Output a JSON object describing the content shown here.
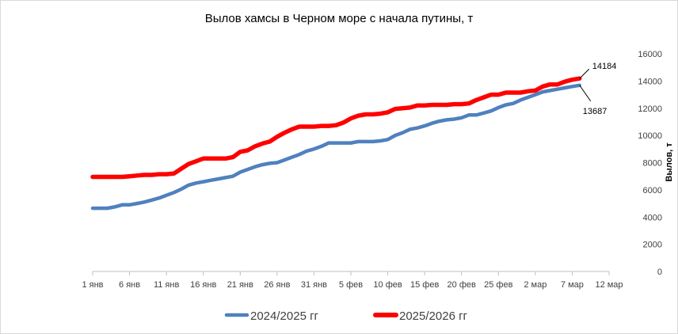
{
  "chart_data": {
    "type": "line",
    "title": "Вылов хамсы в Черном море с начала путины, т",
    "xlabel": "",
    "ylabel": "Вылов, т",
    "ylim": [
      0,
      16000
    ],
    "y_ticks": [
      "0",
      "2000",
      "4000",
      "6000",
      "8000",
      "10000",
      "12000",
      "14000",
      "16000"
    ],
    "x_tick_labels": [
      "1 янв",
      "6 янв",
      "11 янв",
      "16 янв",
      "21 янв",
      "26 янв",
      "31 янв",
      "5 фев",
      "10 фев",
      "15 фев",
      "20 фев",
      "25 фев",
      "2 мар",
      "7 мар",
      "12 мар"
    ],
    "x_range_days": [
      0,
      70
    ],
    "x_tick_days": [
      0,
      5,
      10,
      15,
      20,
      25,
      30,
      35,
      40,
      45,
      50,
      55,
      60,
      65,
      70
    ],
    "grid": false,
    "legend_position": "bottom",
    "series": [
      {
        "name": "2024/2025 гг",
        "color": "#4f81bd",
        "x": [
          0,
          1,
          2,
          3,
          4,
          5,
          6,
          7,
          8,
          9,
          10,
          11,
          12,
          13,
          14,
          15,
          16,
          17,
          18,
          19,
          20,
          21,
          22,
          23,
          24,
          25,
          26,
          27,
          28,
          29,
          30,
          31,
          32,
          33,
          34,
          35,
          36,
          37,
          38,
          39,
          40,
          41,
          42,
          43,
          44,
          45,
          46,
          47,
          48,
          49,
          50,
          51,
          52,
          53,
          54,
          55,
          56,
          57,
          58,
          59,
          60,
          61,
          62,
          63,
          64,
          65,
          66
        ],
        "y": [
          4650,
          4650,
          4650,
          4750,
          4900,
          4900,
          5000,
          5100,
          5250,
          5400,
          5600,
          5800,
          6050,
          6350,
          6500,
          6600,
          6700,
          6800,
          6900,
          7000,
          7300,
          7500,
          7700,
          7850,
          7950,
          8000,
          8200,
          8400,
          8600,
          8850,
          9000,
          9200,
          9450,
          9450,
          9450,
          9450,
          9550,
          9550,
          9550,
          9600,
          9700,
          10000,
          10200,
          10450,
          10550,
          10700,
          10900,
          11050,
          11150,
          11200,
          11300,
          11500,
          11500,
          11650,
          11800,
          12050,
          12250,
          12350,
          12600,
          12800,
          13000,
          13200,
          13300,
          13400,
          13500,
          13600,
          13687
        ]
      },
      {
        "name": "2025/2026 гг",
        "color": "#ff0000",
        "x": [
          0,
          1,
          2,
          3,
          4,
          5,
          6,
          7,
          8,
          9,
          10,
          11,
          12,
          13,
          14,
          15,
          16,
          17,
          18,
          19,
          20,
          21,
          22,
          23,
          24,
          25,
          26,
          27,
          28,
          29,
          30,
          31,
          32,
          33,
          34,
          35,
          36,
          37,
          38,
          39,
          40,
          41,
          42,
          43,
          44,
          45,
          46,
          47,
          48,
          49,
          50,
          51,
          52,
          53,
          54,
          55,
          56,
          57,
          58,
          59,
          60,
          61,
          62,
          63,
          64,
          65,
          66
        ],
        "y": [
          6950,
          6950,
          6950,
          6950,
          6950,
          7000,
          7050,
          7100,
          7100,
          7150,
          7150,
          7200,
          7550,
          7900,
          8100,
          8300,
          8300,
          8300,
          8300,
          8400,
          8800,
          8900,
          9200,
          9400,
          9550,
          9900,
          10200,
          10450,
          10650,
          10650,
          10650,
          10700,
          10700,
          10750,
          10950,
          11250,
          11450,
          11550,
          11550,
          11600,
          11700,
          11950,
          12000,
          12050,
          12200,
          12200,
          12250,
          12250,
          12250,
          12300,
          12300,
          12350,
          12600,
          12800,
          13000,
          13000,
          13150,
          13150,
          13150,
          13250,
          13300,
          13600,
          13750,
          13750,
          13950,
          14100,
          14184
        ]
      }
    ],
    "annotations": [
      {
        "series": "2025/2026 гг",
        "text": "14184"
      },
      {
        "series": "2024/2025 гг",
        "text": "13687"
      }
    ]
  }
}
